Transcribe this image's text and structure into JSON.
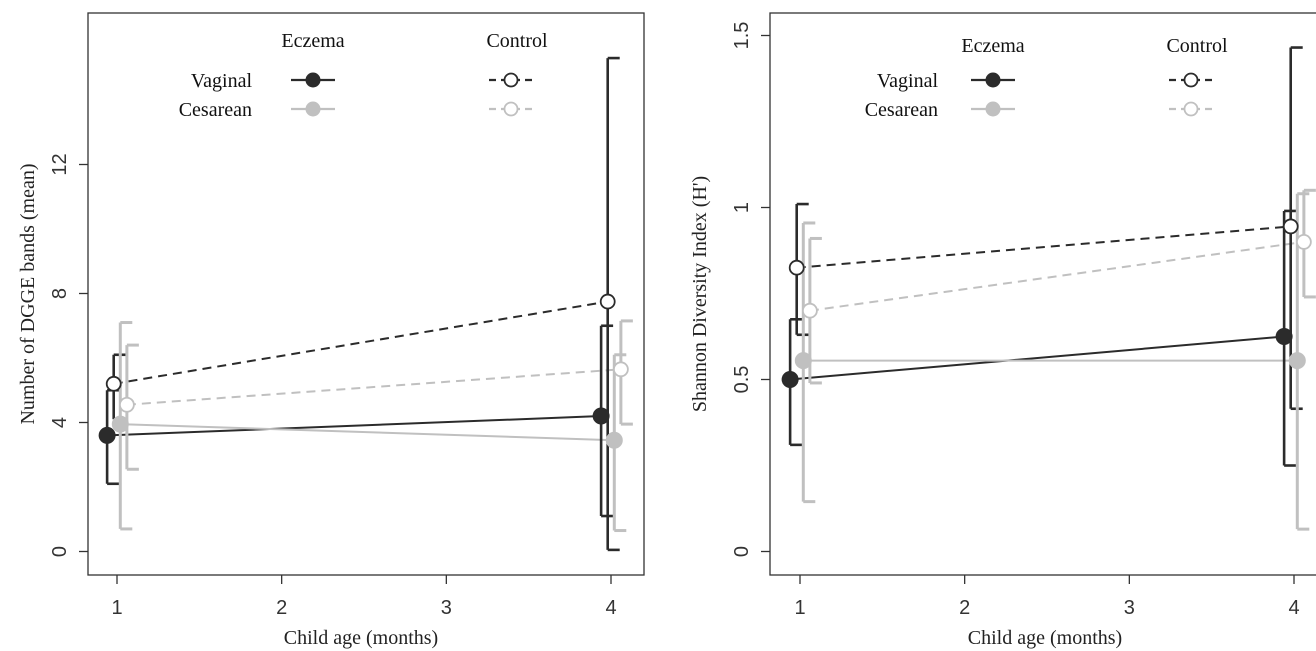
{
  "chart_data": [
    {
      "type": "line",
      "xlabel": "Child age (months)",
      "ylabel": "Number of DGGE bands (mean)",
      "x_ticks": [
        "1",
        "2",
        "3",
        "4"
      ],
      "y_ticks": [
        "0",
        "4",
        "8",
        "12"
      ],
      "xlim": [
        0.82,
        4.17
      ],
      "ylim": [
        -0.6,
        16.6
      ],
      "grid": false,
      "legend": {
        "placement": "top",
        "column_headers": [
          "Eczema",
          "Control"
        ],
        "row_labels": [
          "Vaginal",
          "Cesarean"
        ]
      },
      "series": [
        {
          "group": "Eczema",
          "delivery": "Vaginal",
          "color": "#2b2b2b",
          "dashed": false,
          "filled": true,
          "points": [
            {
              "x": 0.94,
              "y": 3.6,
              "lo": 2.1,
              "hi": 5.0
            },
            {
              "x": 3.94,
              "y": 4.2,
              "lo": 1.1,
              "hi": 7.0
            }
          ]
        },
        {
          "group": "Control",
          "delivery": "Vaginal",
          "color": "#2b2b2b",
          "dashed": true,
          "filled": false,
          "points": [
            {
              "x": 0.98,
              "y": 5.2,
              "lo": 4.1,
              "hi": 6.1
            },
            {
              "x": 3.98,
              "y": 7.75,
              "lo": 0.05,
              "hi": 15.3
            }
          ]
        },
        {
          "group": "Eczema",
          "delivery": "Cesarean",
          "color": "#c0c0c0",
          "dashed": false,
          "filled": true,
          "points": [
            {
              "x": 1.02,
              "y": 3.95,
              "lo": 0.7,
              "hi": 7.1
            },
            {
              "x": 4.02,
              "y": 3.45,
              "lo": 0.65,
              "hi": 6.1
            }
          ]
        },
        {
          "group": "Control",
          "delivery": "Cesarean",
          "color": "#c0c0c0",
          "dashed": true,
          "filled": false,
          "points": [
            {
              "x": 1.06,
              "y": 4.55,
              "lo": 2.55,
              "hi": 6.4
            },
            {
              "x": 4.06,
              "y": 5.65,
              "lo": 3.95,
              "hi": 7.15
            }
          ]
        }
      ]
    },
    {
      "type": "line",
      "xlabel": "Child age (months)",
      "ylabel": "Shannon Diversity Index (H')",
      "x_ticks": [
        "1",
        "2",
        "3",
        "4"
      ],
      "y_ticks": [
        "0",
        "0.5",
        "1",
        "1.5"
      ],
      "xlim": [
        0.82,
        4.02
      ],
      "ylim": [
        -0.07,
        1.6
      ],
      "grid": false,
      "legend": {
        "placement": "top",
        "column_headers": [
          "Eczema",
          "Control"
        ],
        "row_labels": [
          "Vaginal",
          "Cesarean"
        ]
      },
      "series": [
        {
          "group": "Eczema",
          "delivery": "Vaginal",
          "color": "#2b2b2b",
          "dashed": false,
          "filled": true,
          "points": [
            {
              "x": 0.94,
              "y": 0.5,
              "lo": 0.31,
              "hi": 0.675
            },
            {
              "x": 3.94,
              "y": 0.625,
              "lo": 0.25,
              "hi": 0.99
            }
          ]
        },
        {
          "group": "Control",
          "delivery": "Vaginal",
          "color": "#2b2b2b",
          "dashed": true,
          "filled": false,
          "points": [
            {
              "x": 0.98,
              "y": 0.825,
              "lo": 0.63,
              "hi": 1.01
            },
            {
              "x": 3.98,
              "y": 0.945,
              "lo": 0.415,
              "hi": 1.465
            }
          ]
        },
        {
          "group": "Eczema",
          "delivery": "Cesarean",
          "color": "#c0c0c0",
          "dashed": false,
          "filled": true,
          "points": [
            {
              "x": 1.02,
              "y": 0.555,
              "lo": 0.145,
              "hi": 0.955
            },
            {
              "x": 4.02,
              "y": 0.555,
              "lo": 0.065,
              "hi": 1.04
            }
          ]
        },
        {
          "group": "Control",
          "delivery": "Cesarean",
          "color": "#c0c0c0",
          "dashed": true,
          "filled": false,
          "points": [
            {
              "x": 1.06,
              "y": 0.7,
              "lo": 0.49,
              "hi": 0.91
            },
            {
              "x": 4.06,
              "y": 0.9,
              "lo": 0.74,
              "hi": 1.05
            }
          ]
        }
      ]
    }
  ]
}
